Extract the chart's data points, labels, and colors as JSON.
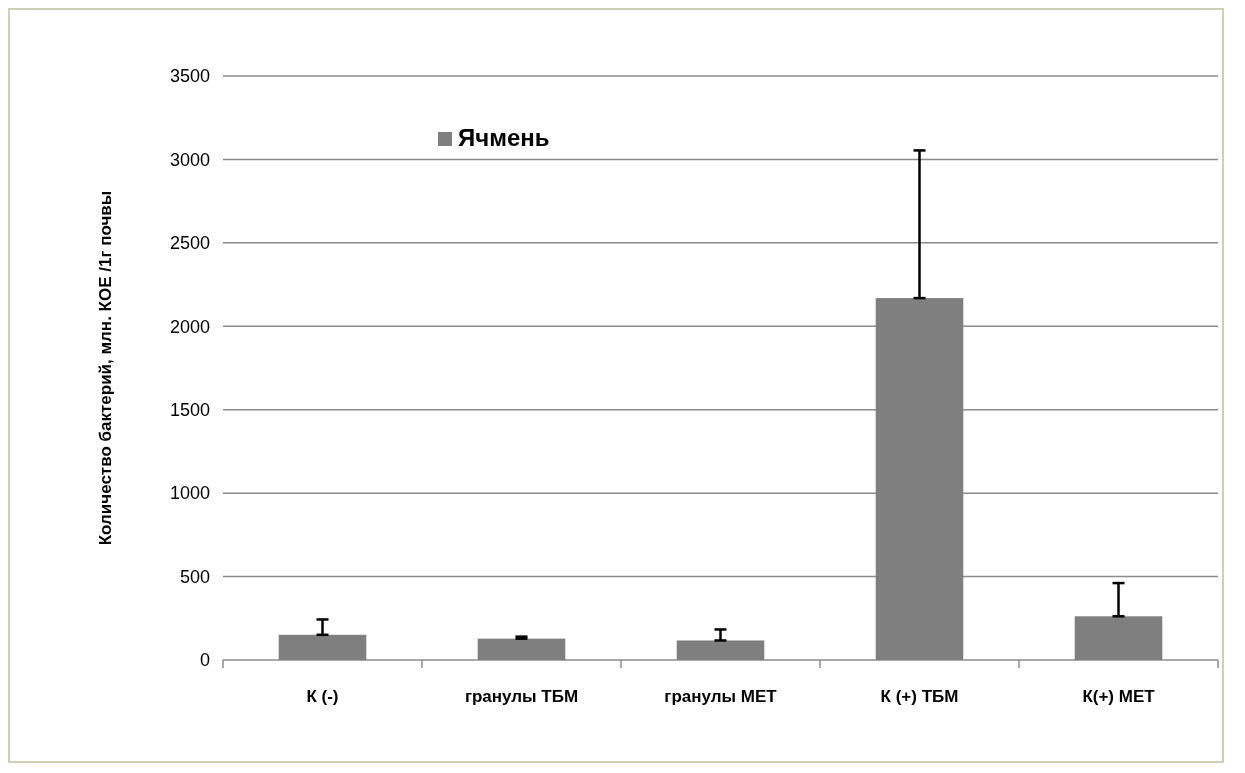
{
  "chart_data": {
    "type": "bar",
    "ylabel": "Количество бактерий, млн. КОЕ /1г почвы",
    "categories": [
      "К (-)",
      "гранулы ТБМ",
      "гранулы МЕТ",
      "К (+) ТБМ",
      "К(+) МЕТ"
    ],
    "series": [
      {
        "name": "Ячмень",
        "color": "#7f7f7f",
        "values": [
          151,
          128,
          117,
          2169,
          262
        ],
        "errors": [
          [
            151,
            243
          ],
          [
            128,
            140
          ],
          [
            117,
            183
          ],
          [
            2169,
            3054
          ],
          [
            262,
            461
          ]
        ]
      }
    ],
    "ylim": [
      0,
      3500
    ],
    "yticks": [
      0,
      500,
      1000,
      1500,
      2000,
      2500,
      3000,
      3500
    ],
    "grid": "y",
    "legend": "top left"
  }
}
